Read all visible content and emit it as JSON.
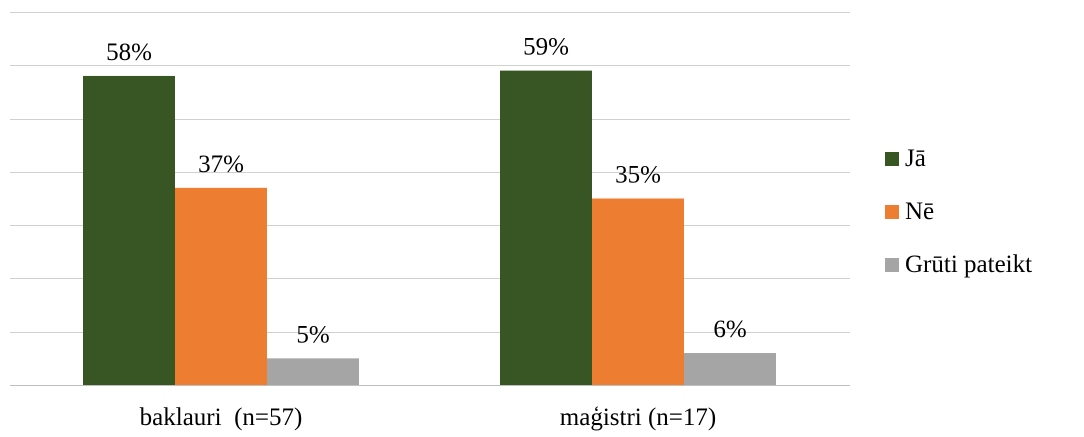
{
  "chart_data": {
    "type": "bar",
    "categories": [
      "baklauri  (n=57)",
      "maģistri (n=17)"
    ],
    "series": [
      {
        "name": "Jā",
        "values": [
          58,
          59
        ],
        "labels": [
          "58%",
          "59%"
        ],
        "color": "#375623"
      },
      {
        "name": "Nē",
        "values": [
          37,
          35
        ],
        "labels": [
          "37%",
          "35%"
        ],
        "color": "#ed7d31"
      },
      {
        "name": "Grūti pateikt",
        "values": [
          5,
          6
        ],
        "labels": [
          "5%",
          "6%"
        ],
        "color": "#a5a5a5"
      }
    ],
    "ylim": [
      0,
      70
    ],
    "grid": true,
    "legend_position": "right",
    "title": "",
    "xlabel": "",
    "ylabel": ""
  }
}
